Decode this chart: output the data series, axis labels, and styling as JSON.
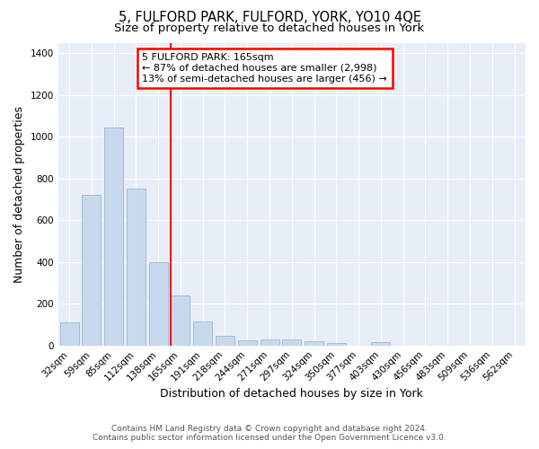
{
  "title": "5, FULFORD PARK, FULFORD, YORK, YO10 4QE",
  "subtitle": "Size of property relative to detached houses in York",
  "xlabel": "Distribution of detached houses by size in York",
  "ylabel": "Number of detached properties",
  "categories": [
    "32sqm",
    "59sqm",
    "85sqm",
    "112sqm",
    "138sqm",
    "165sqm",
    "191sqm",
    "218sqm",
    "244sqm",
    "271sqm",
    "297sqm",
    "324sqm",
    "350sqm",
    "377sqm",
    "403sqm",
    "430sqm",
    "456sqm",
    "483sqm",
    "509sqm",
    "536sqm",
    "562sqm"
  ],
  "values": [
    110,
    720,
    1045,
    750,
    400,
    240,
    115,
    45,
    25,
    30,
    30,
    20,
    10,
    0,
    15,
    0,
    0,
    0,
    0,
    0,
    0
  ],
  "bar_color": "#c9d9ed",
  "bar_edge_color": "#9ab4d4",
  "red_line_index": 5,
  "ylim": [
    0,
    1450
  ],
  "yticks": [
    0,
    200,
    400,
    600,
    800,
    1000,
    1200,
    1400
  ],
  "annotation_title": "5 FULFORD PARK: 165sqm",
  "annotation_line1": "← 87% of detached houses are smaller (2,998)",
  "annotation_line2": "13% of semi-detached houses are larger (456) →",
  "footer_line1": "Contains HM Land Registry data © Crown copyright and database right 2024.",
  "footer_line2": "Contains public sector information licensed under the Open Government Licence v3.0.",
  "fig_bg_color": "#ffffff",
  "plot_bg_color": "#e8eef8",
  "grid_color": "#ffffff",
  "title_fontsize": 10.5,
  "subtitle_fontsize": 9.5,
  "axis_label_fontsize": 9,
  "tick_fontsize": 7.5,
  "footer_fontsize": 6.5,
  "annotation_fontsize": 8
}
